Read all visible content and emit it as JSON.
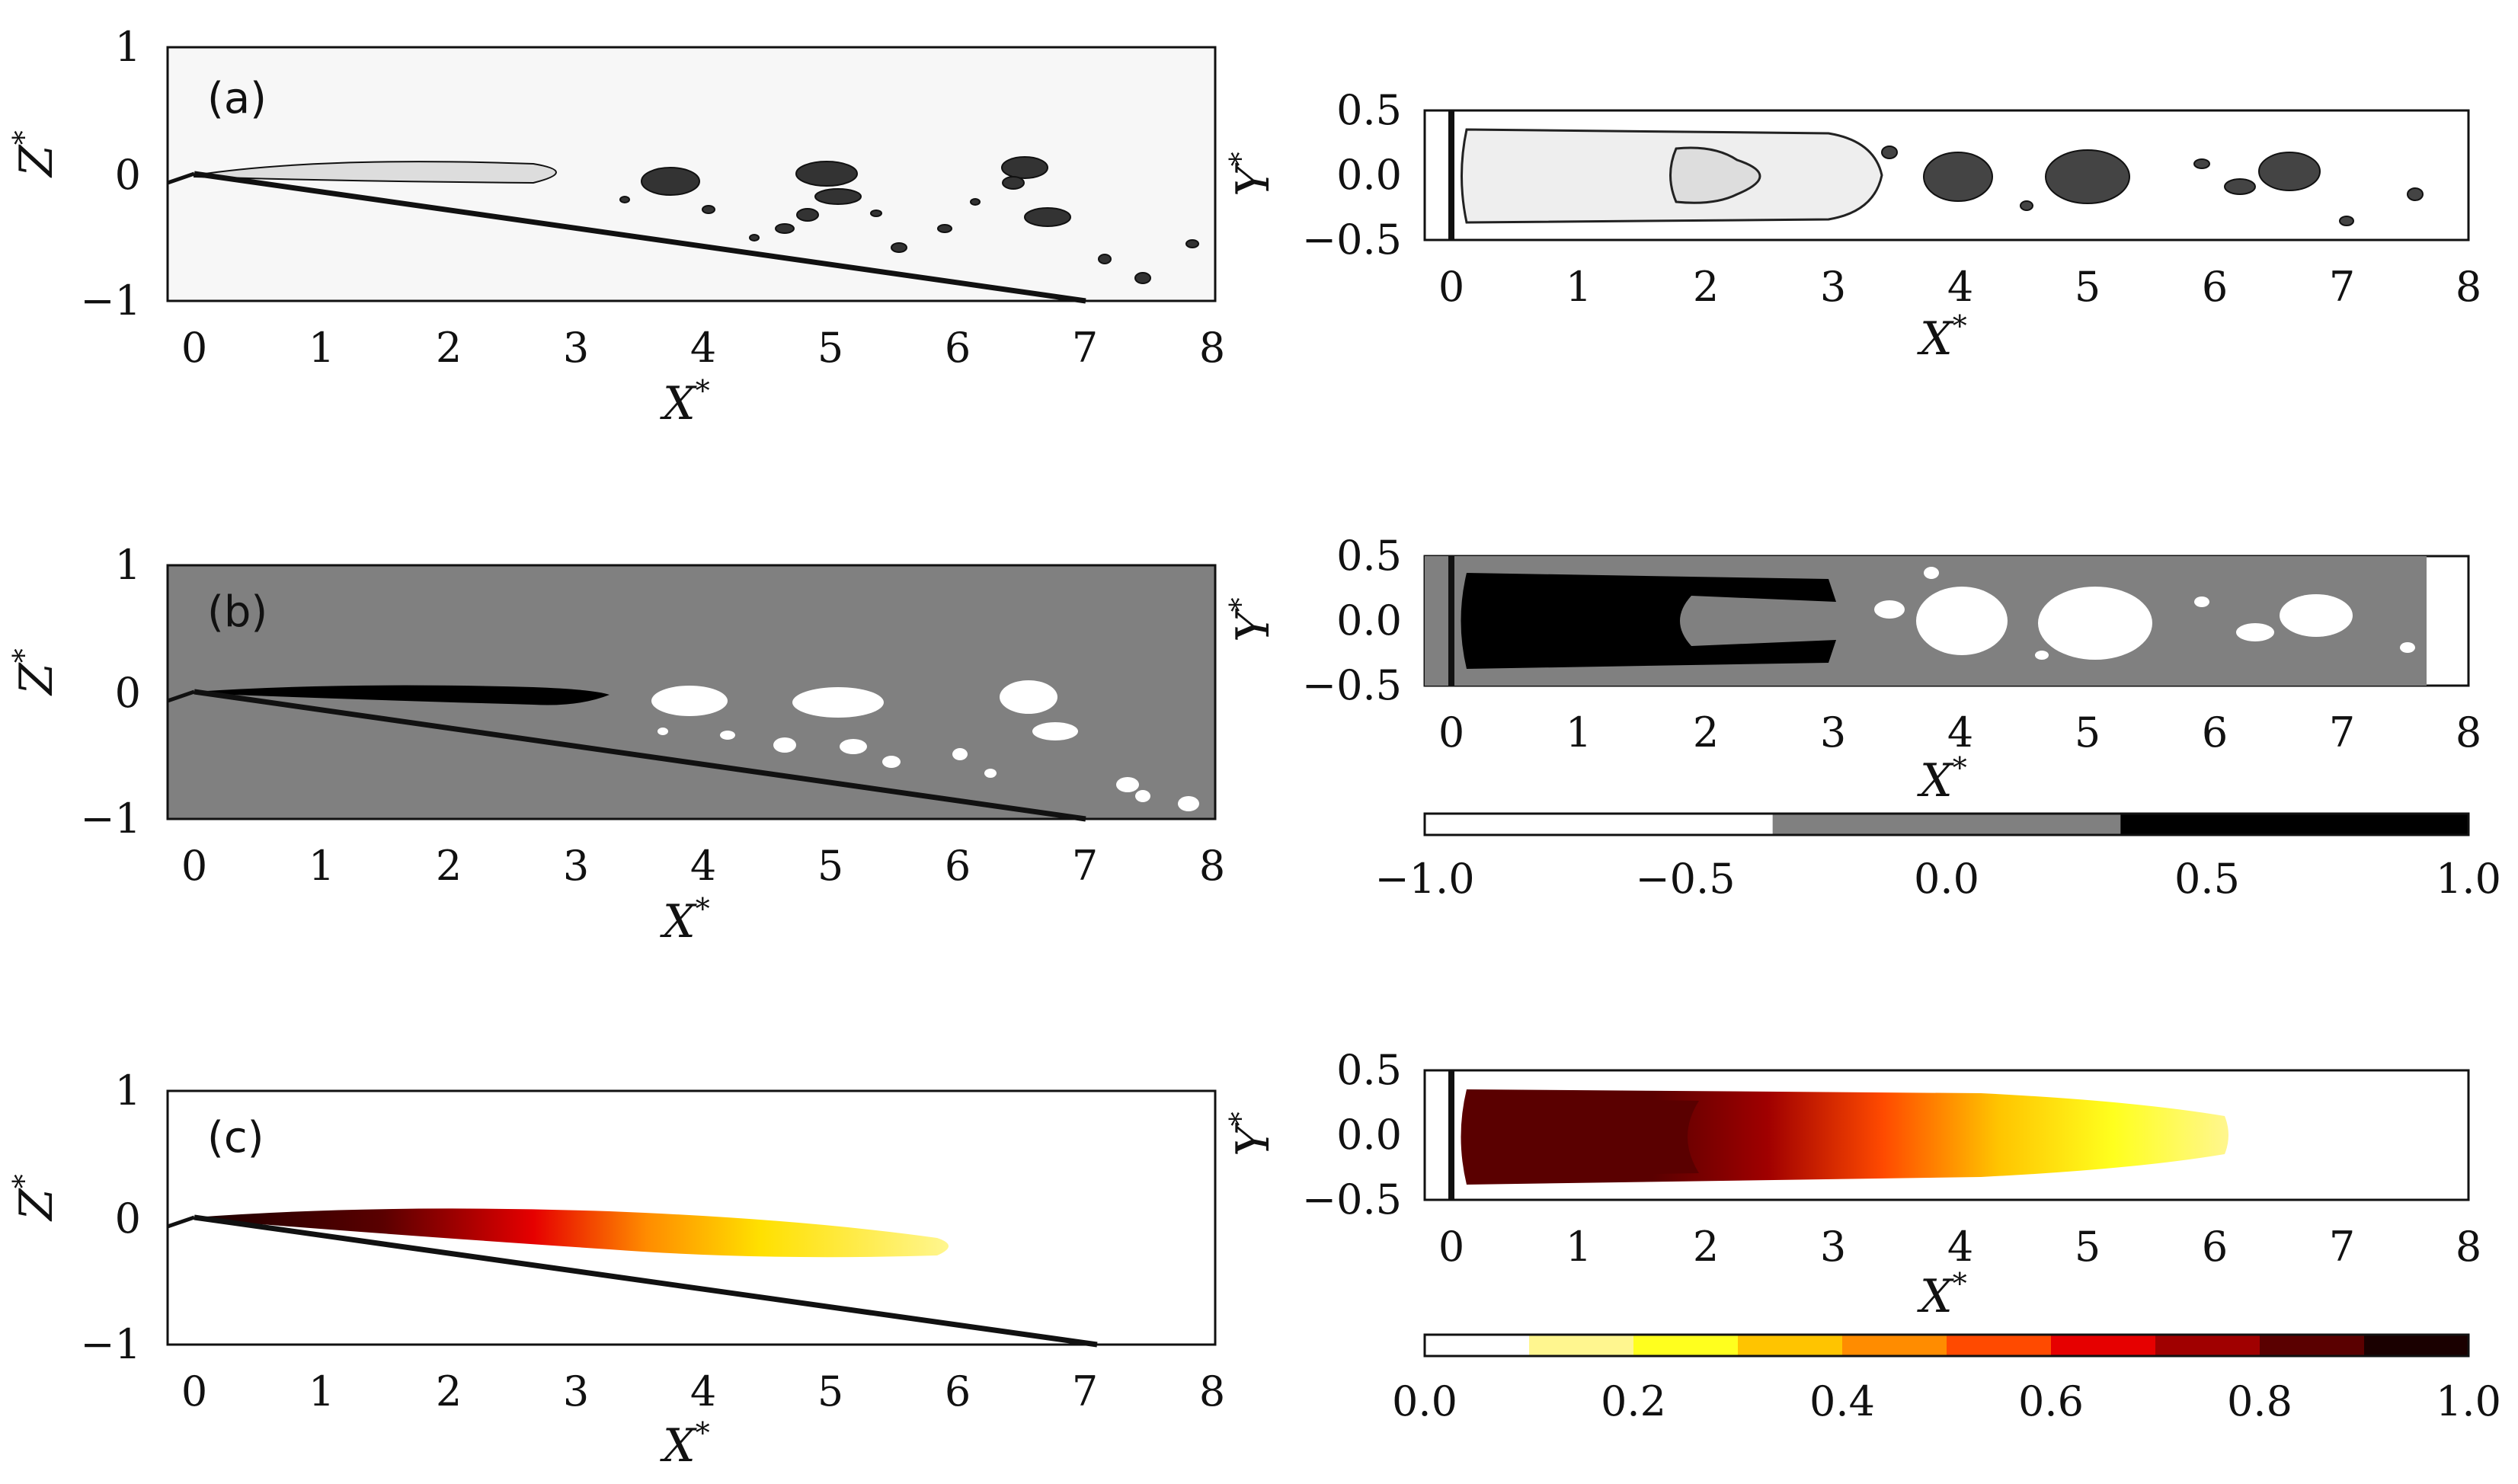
{
  "panels": [
    {
      "id": "a",
      "label": "(a)",
      "xlabel": "X",
      "ylabel": "Z",
      "xticks": [
        "0",
        "1",
        "2",
        "3",
        "4",
        "5",
        "6",
        "7",
        "8"
      ],
      "yticks": [
        "1",
        "0",
        "−1"
      ]
    },
    {
      "id": "b",
      "label": "(b)",
      "xlabel": "X",
      "ylabel": "Z",
      "xticks": [
        "0",
        "1",
        "2",
        "3",
        "4",
        "5",
        "6",
        "7",
        "8"
      ],
      "yticks": [
        "1",
        "0",
        "−1"
      ]
    },
    {
      "id": "c",
      "label": "(c)",
      "xlabel": "X",
      "ylabel": "Z",
      "xticks": [
        "0",
        "1",
        "2",
        "3",
        "4",
        "5",
        "6",
        "7",
        "8"
      ],
      "yticks": [
        "1",
        "0",
        "−1"
      ]
    }
  ],
  "top_views": [
    {
      "id": "a-top",
      "xlabel": "X",
      "ylabel": "Y",
      "xticks": [
        "0",
        "1",
        "2",
        "3",
        "4",
        "5",
        "6",
        "7",
        "8"
      ],
      "yticks": [
        "0.5",
        "0.0",
        "−0.5"
      ]
    },
    {
      "id": "b-top",
      "xlabel": "X",
      "ylabel": "Y",
      "xticks": [
        "0",
        "1",
        "2",
        "3",
        "4",
        "5",
        "6",
        "7",
        "8"
      ],
      "yticks": [
        "0.5",
        "0.0",
        "−0.5"
      ]
    },
    {
      "id": "c-top",
      "xlabel": "X",
      "ylabel": "Y",
      "xticks": [
        "0",
        "1",
        "2",
        "3",
        "4",
        "5",
        "6",
        "7",
        "8"
      ],
      "yticks": [
        "0.5",
        "0.0",
        "−0.5"
      ]
    }
  ],
  "superscript": "*",
  "colorbar_phase": {
    "ticks": [
      "−1.0",
      "−0.5",
      "0.0",
      "0.5",
      "1.0"
    ],
    "colors": [
      "#ffffff",
      "#808080",
      "#000000"
    ]
  },
  "colorbar_frequency": {
    "ticks": [
      "0.0",
      "0.2",
      "0.4",
      "0.6",
      "0.8",
      "1.0"
    ],
    "colors": [
      "#ffffff",
      "#fff68f",
      "#ffff1e",
      "#ffc400",
      "#ff8c00",
      "#ff4a00",
      "#e60000",
      "#a00000",
      "#5a0000",
      "#1a0000"
    ]
  },
  "domain": {
    "x_range": [
      -0.25,
      8
    ],
    "z_range": [
      -1,
      1
    ],
    "y_range": [
      -0.5,
      0.5
    ],
    "ramp_end": [
      7,
      -1
    ]
  }
}
